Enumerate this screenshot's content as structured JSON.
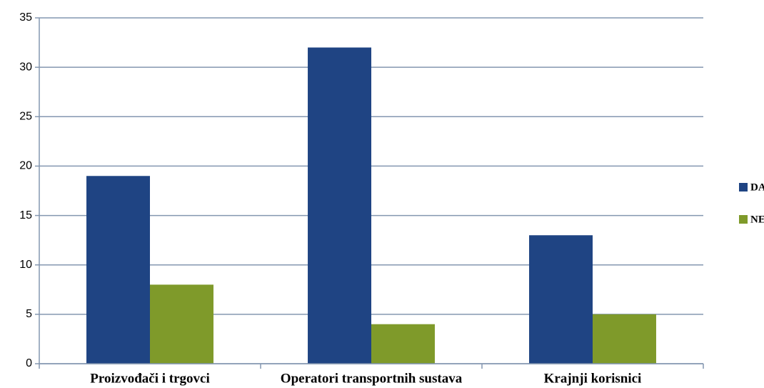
{
  "chart_data": {
    "type": "bar",
    "categories": [
      "Proizvođači i trgovci",
      "Operatori transportnih sustava",
      "Krajnji korisnici"
    ],
    "series": [
      {
        "name": "DA",
        "color": "#1f4483",
        "values": [
          19,
          32,
          13
        ]
      },
      {
        "name": "NE",
        "color": "#7f9a2a",
        "values": [
          8,
          4,
          5
        ]
      }
    ],
    "ylim": [
      0,
      35
    ],
    "yticks": [
      0,
      5,
      10,
      15,
      20,
      25,
      30,
      35
    ],
    "grid": true,
    "legend": "right"
  }
}
